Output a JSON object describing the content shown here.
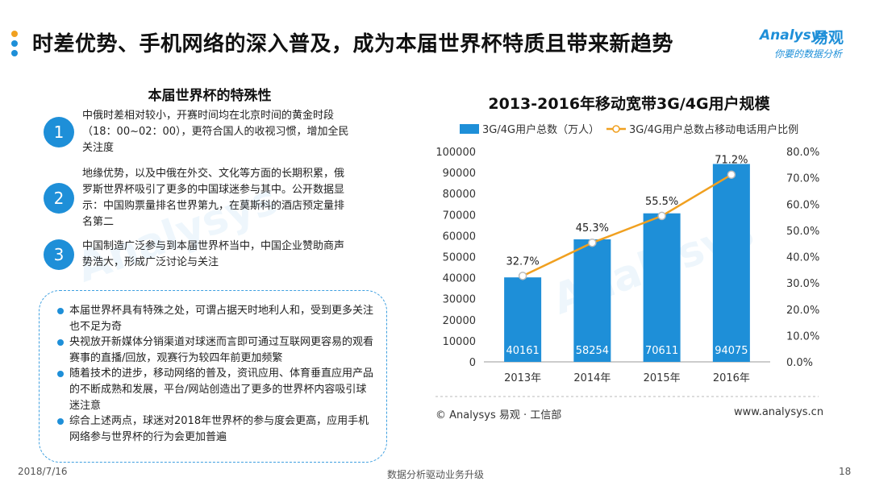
{
  "header": {
    "title": "时差优势、手机网络的深入普及，成为本届世界杯特质且带来新趋势",
    "dot_colors": [
      "#f0a020",
      "#1e8fd8",
      "#1e8fd8"
    ]
  },
  "logo": {
    "mark": "Analysys",
    "cn": "易观",
    "tagline": "你要的数据分析"
  },
  "left": {
    "heading": "本届世界杯的特殊性",
    "points": [
      {
        "num": "1",
        "text": "中俄时差相对较小，开赛时间均在北京时间的黄金时段（18：00~02：00），更符合国人的收视习惯，增加全民关注度"
      },
      {
        "num": "2",
        "text": "地缘优势，以及中俄在外交、文化等方面的长期积累，俄罗斯世界杯吸引了更多的中国球迷参与其中。公开数据显示：中国购票量排名世界第九，在莫斯科的酒店预定量排名第二"
      },
      {
        "num": "3",
        "text": "中国制造广泛参与到本届世界杯当中，中国企业赞助商声势浩大，形成广泛讨论与关注"
      }
    ],
    "bullets": [
      "本届世界杯具有特殊之处，可谓占据天时地利人和，受到更多关注也不足为奇",
      "央视放开新媒体分销渠道对球迷而言即可通过互联网更容易的观看赛事的直播/回放，观赛行为较四年前更加频繁",
      "随着技术的进步，移动网络的普及，资讯应用、体育垂直应用产品的不断成熟和发展，平台/网站创造出了更多的世界杯内容吸引球迷注意",
      "综合上述两点，球迷对2018年世界杯的参与度会更高，应用手机网络参与世界杯的行为会更加普遍"
    ]
  },
  "chart_data": {
    "type": "bar",
    "title": "2013-2016年移动宽带3G/4G用户规模",
    "categories": [
      "2013年",
      "2014年",
      "2015年",
      "2016年"
    ],
    "series": [
      {
        "name": "3G/4G用户总数（万人）",
        "type": "bar",
        "axis": "left",
        "values": [
          40161,
          58254,
          70611,
          94075
        ],
        "labels": [
          "40161",
          "58254",
          "70611",
          "94075"
        ],
        "color": "#1e8fd8"
      },
      {
        "name": "3G/4G用户总数占移动电话用户比例",
        "type": "line",
        "axis": "right",
        "values": [
          32.7,
          45.3,
          55.5,
          71.2
        ],
        "labels": [
          "32.7%",
          "45.3%",
          "55.5%",
          "71.2%"
        ],
        "color": "#f0a020"
      }
    ],
    "ylim": [
      0,
      100000
    ],
    "yticks": [
      "0",
      "10000",
      "20000",
      "30000",
      "40000",
      "50000",
      "60000",
      "70000",
      "80000",
      "90000",
      "100000"
    ],
    "y2lim": [
      0,
      80
    ],
    "y2ticks": [
      "0.0%",
      "10.0%",
      "20.0%",
      "30.0%",
      "40.0%",
      "50.0%",
      "60.0%",
      "70.0%",
      "80.0%"
    ],
    "legend": "top",
    "grid": false
  },
  "source": {
    "left": "© Analysys 易观 · 工信部",
    "right": "www.analysys.cn"
  },
  "footer": {
    "date": "2018/7/16",
    "center": "数据分析驱动业务升级",
    "page": "18"
  }
}
